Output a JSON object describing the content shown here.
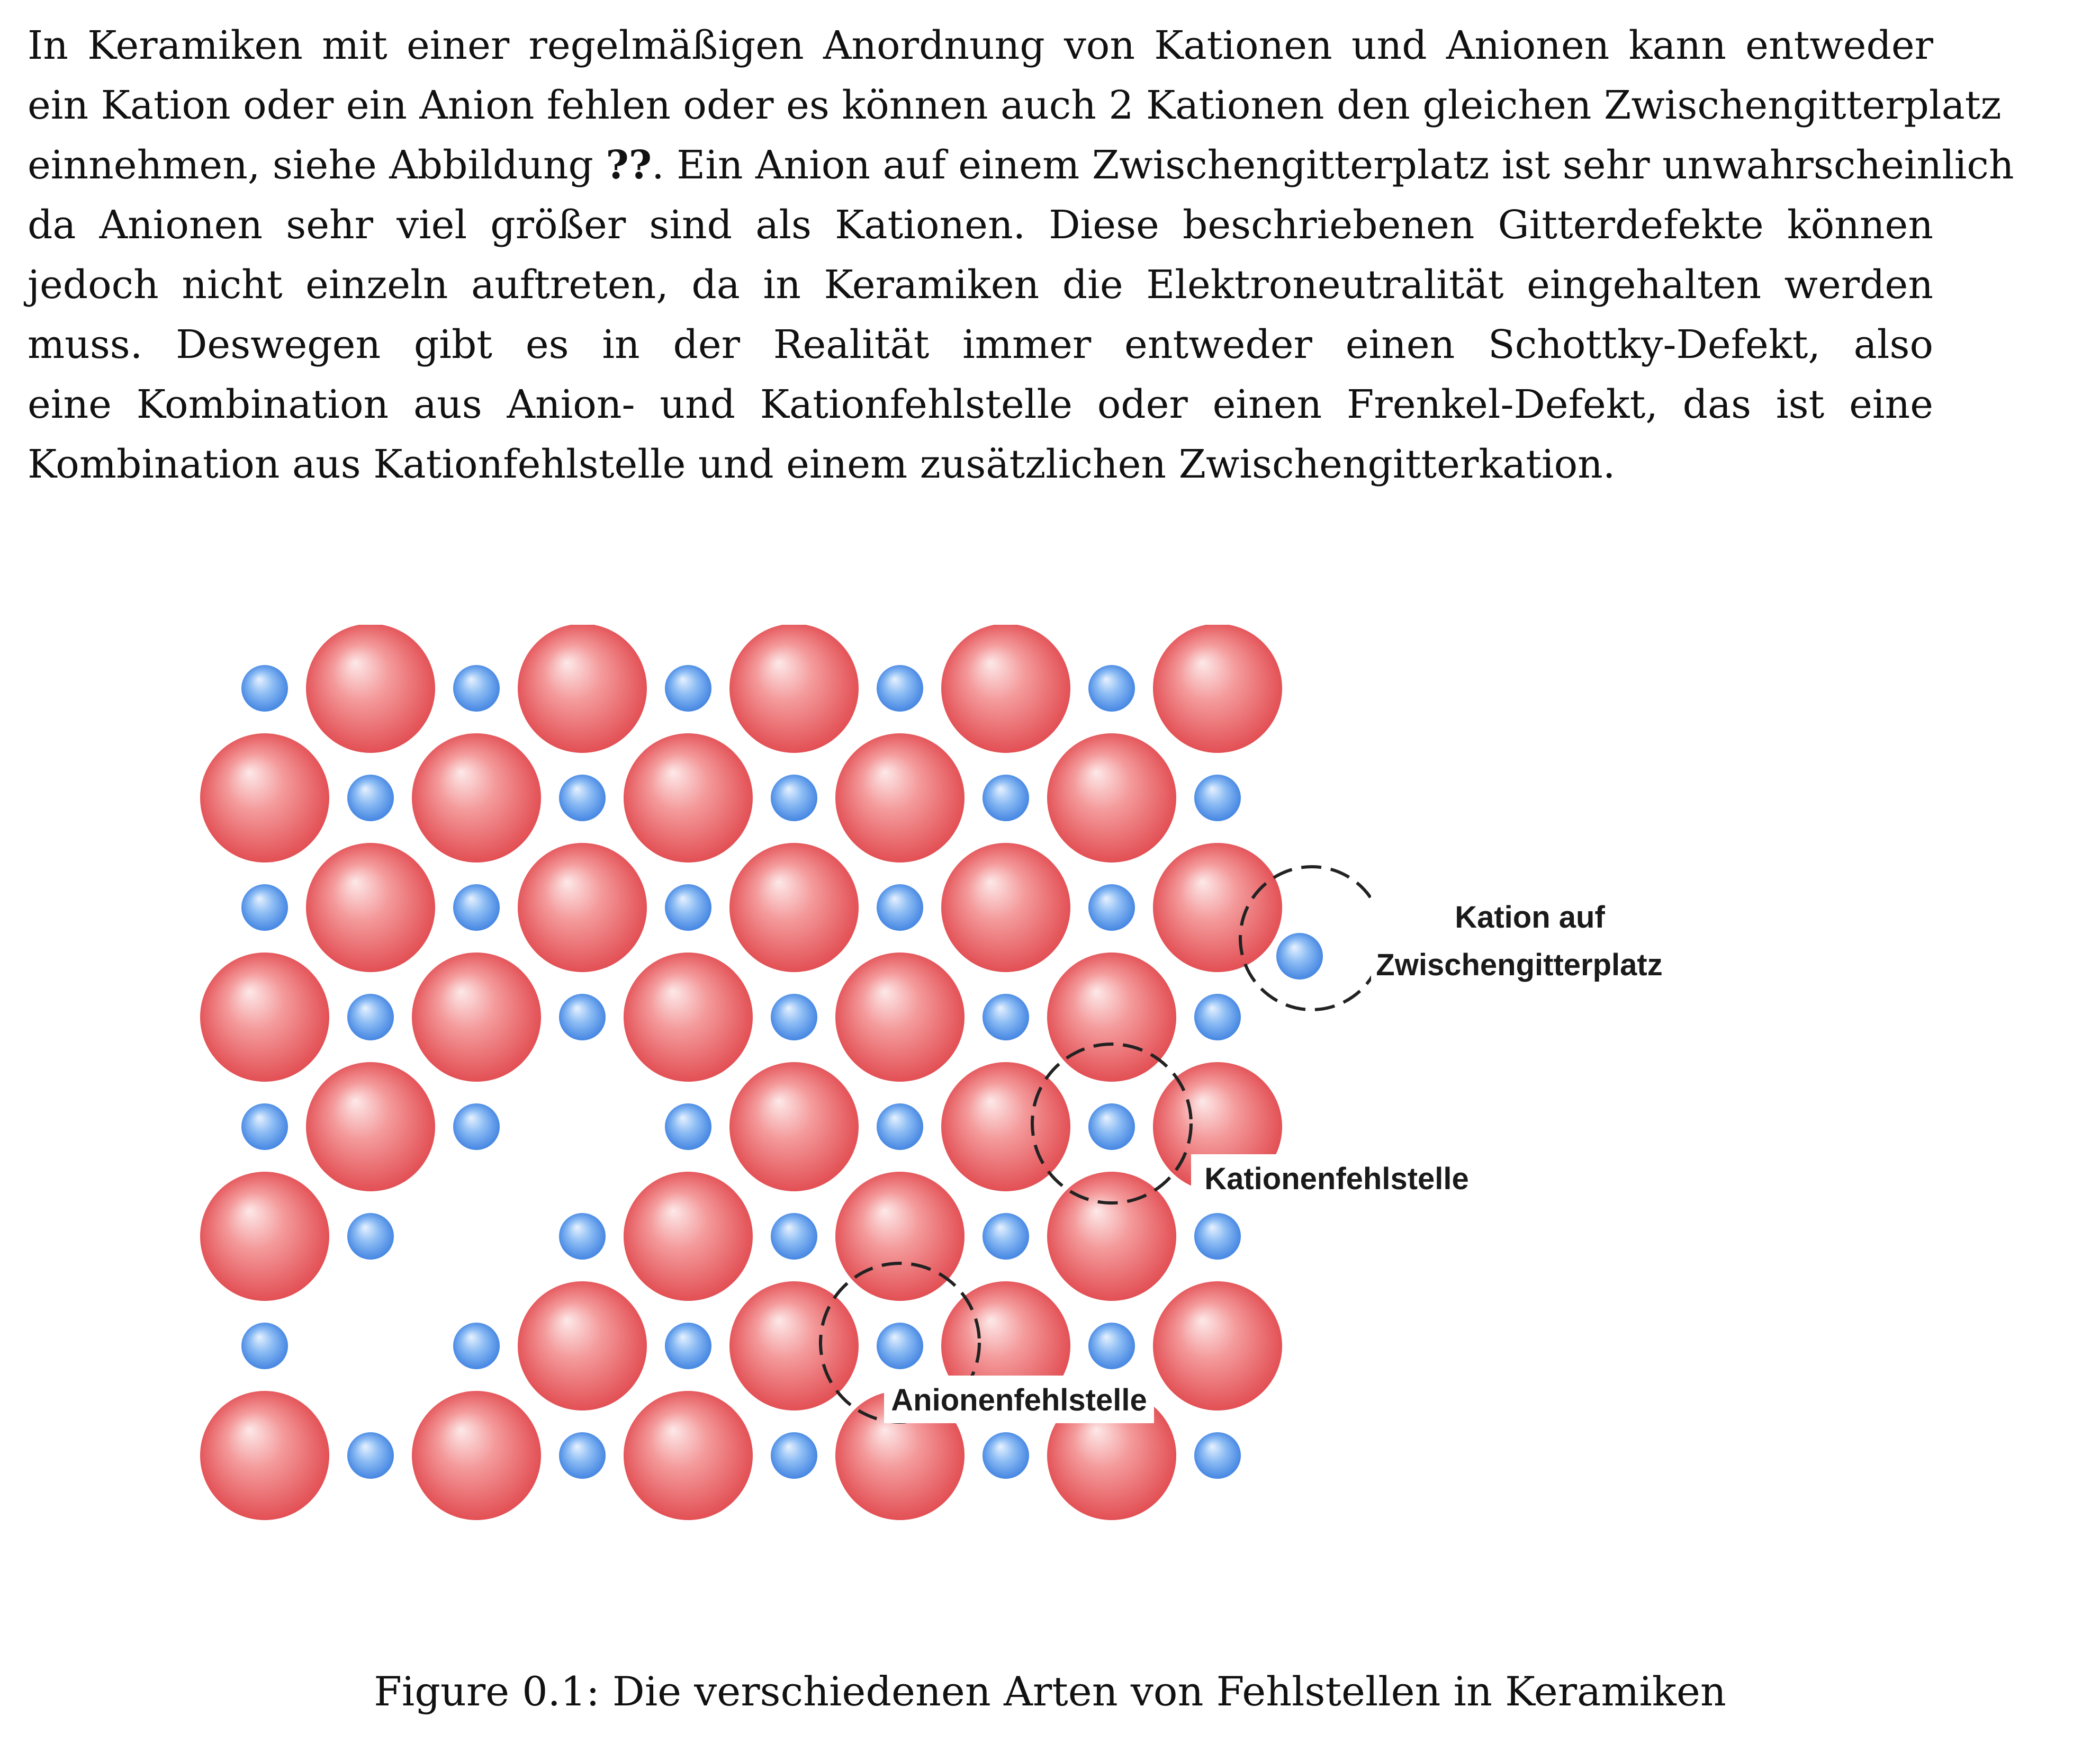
{
  "paragraph": {
    "lines": [
      "In Keramiken mit einer regelmäßigen Anordnung von Kationen und Anionen kann entweder",
      "ein Kation oder ein Anion fehlen oder es können auch 2 Kationen den gleichen Zwischengitterplatz",
      "einnehmen, siehe Abbildung ",
      "da Anionen sehr viel größer sind als Kationen. Diese beschriebenen Gitterdefekte können",
      "jedoch nicht einzeln auftreten, da in Keramiken die Elektroneutralität eingehalten werden",
      "muss. Deswegen gibt es in der Realität immer entweder einen Schottky-Defekt, also",
      "eine Kombination aus Anion- und Kationfehlstelle oder einen Frenkel-Defekt, das ist eine",
      "Kombination aus Kationfehlstelle und einem zusätzlichen Zwischengitterkation."
    ],
    "ref_marker": "??",
    "line3_rest": ". Ein Anion auf einem Zwischengitterplatz ist sehr unwahrscheinlich"
  },
  "figure": {
    "labels": {
      "interstitial_line1": "Kation auf",
      "interstitial_line2": "Zwischengitterplatz",
      "cation_vacancy": "Kationenfehlstelle",
      "anion_vacancy": "Anionenfehlstelle"
    },
    "colors": {
      "anion": "#ee6b6e",
      "cation": "#6ea6ee",
      "dashed_circle": "#222222"
    }
  },
  "caption": {
    "text": "Figure 0.1: Die verschiedenen Arten von Fehlstellen in Keramiken"
  }
}
